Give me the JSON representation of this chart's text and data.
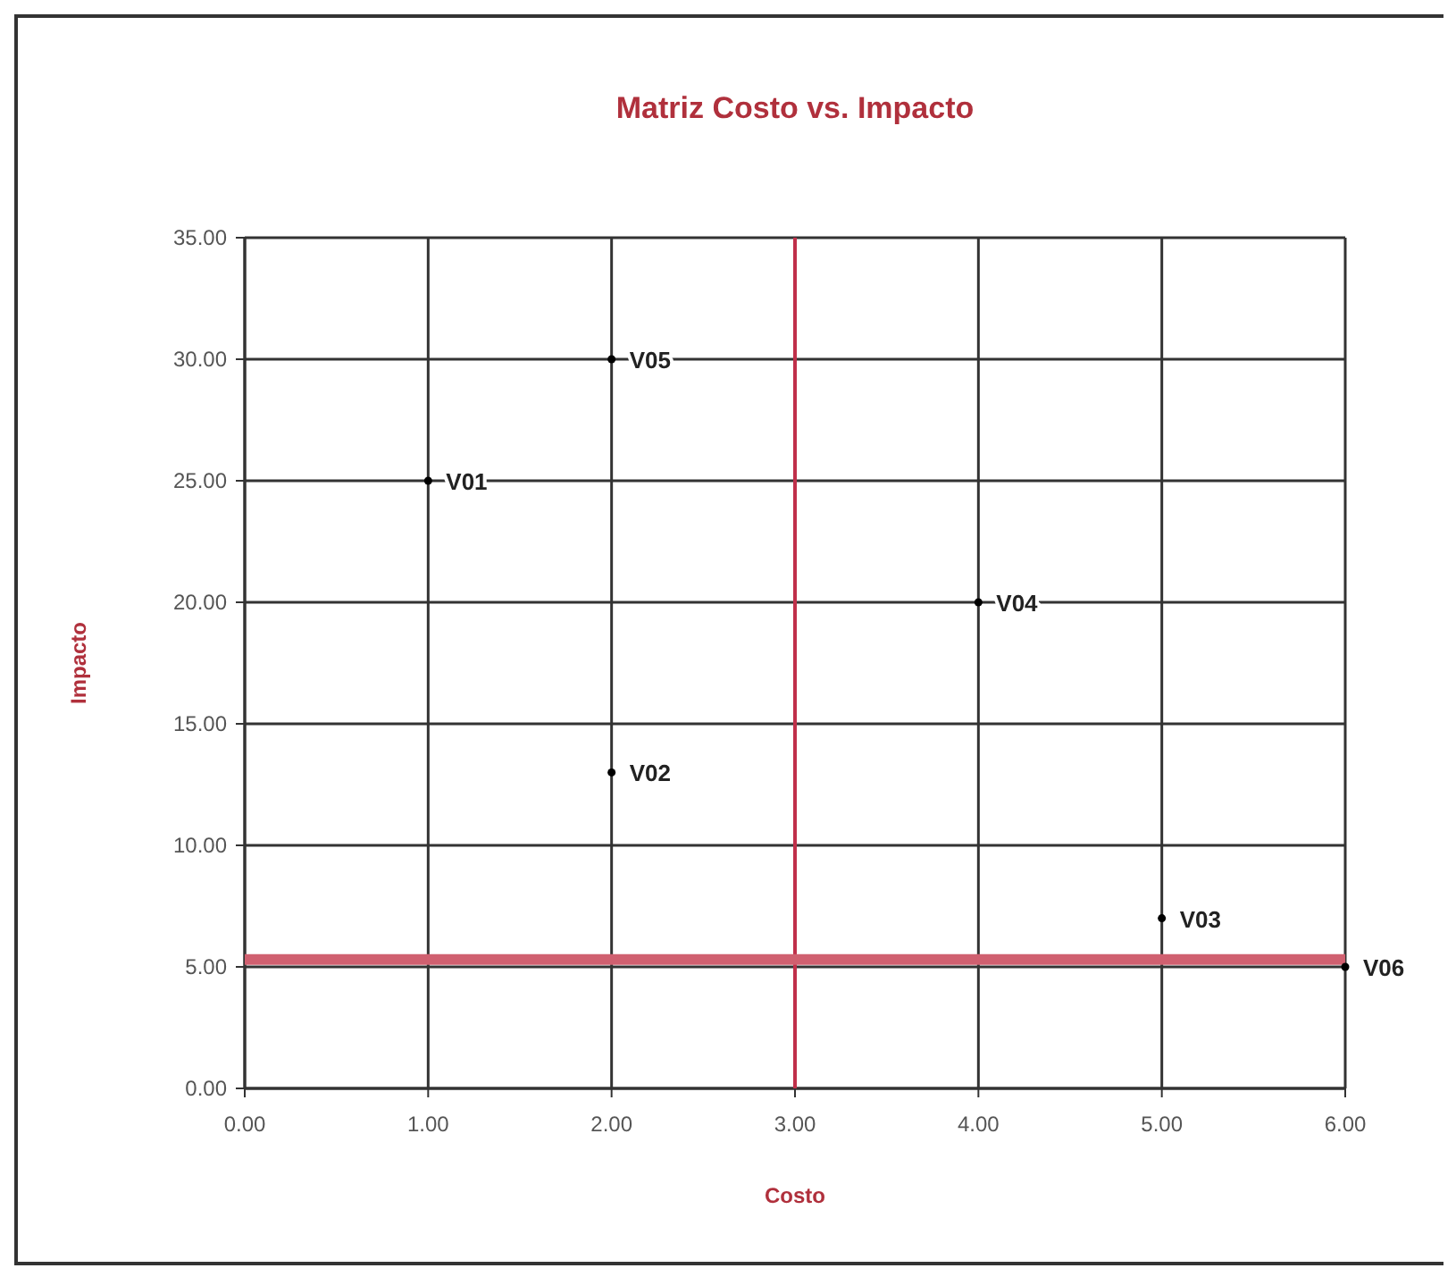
{
  "chart_data": {
    "type": "scatter",
    "title": "Matriz Costo vs. Impacto",
    "xlabel": "Costo",
    "ylabel": "Impacto",
    "x": [
      1,
      2,
      5,
      4,
      2,
      6
    ],
    "values": [
      25,
      13,
      7,
      20,
      30,
      5
    ],
    "color": "#000000",
    "marker": "circle",
    "grid": true,
    "xlim": [
      0,
      6
    ],
    "xticks": [
      {
        "value": 0,
        "label": "0.00"
      },
      {
        "value": 1,
        "label": "1.00"
      },
      {
        "value": 2,
        "label": "2.00"
      },
      {
        "value": 3,
        "label": "3.00"
      },
      {
        "value": 4,
        "label": "4.00"
      },
      {
        "value": 5,
        "label": "5.00"
      },
      {
        "value": 6,
        "label": "6.00"
      }
    ],
    "ylim": [
      0,
      35
    ],
    "yticks": [
      {
        "value": 0,
        "label": "0.00"
      },
      {
        "value": 5,
        "label": "5.00"
      },
      {
        "value": 10,
        "label": "10.00"
      },
      {
        "value": 15,
        "label": "15.00"
      },
      {
        "value": 20,
        "label": "20.00"
      },
      {
        "value": 25,
        "label": "25.00"
      },
      {
        "value": 30,
        "label": "30.00"
      },
      {
        "value": 35,
        "label": "35.00"
      }
    ],
    "ref_lines": [
      {
        "axis": "x",
        "value": 3,
        "color": "#c0304a"
      },
      {
        "axis": "y",
        "value": 5.3,
        "color": "#d06070"
      }
    ],
    "annotations": [
      {
        "text": "V01",
        "x": 1,
        "y": 25
      },
      {
        "text": "V02",
        "x": 2,
        "y": 13
      },
      {
        "text": "V03",
        "x": 5,
        "y": 7
      },
      {
        "text": "V04",
        "x": 4,
        "y": 20
      },
      {
        "text": "V05",
        "x": 2,
        "y": 30
      },
      {
        "text": "V06",
        "x": 6,
        "y": 5
      }
    ]
  }
}
